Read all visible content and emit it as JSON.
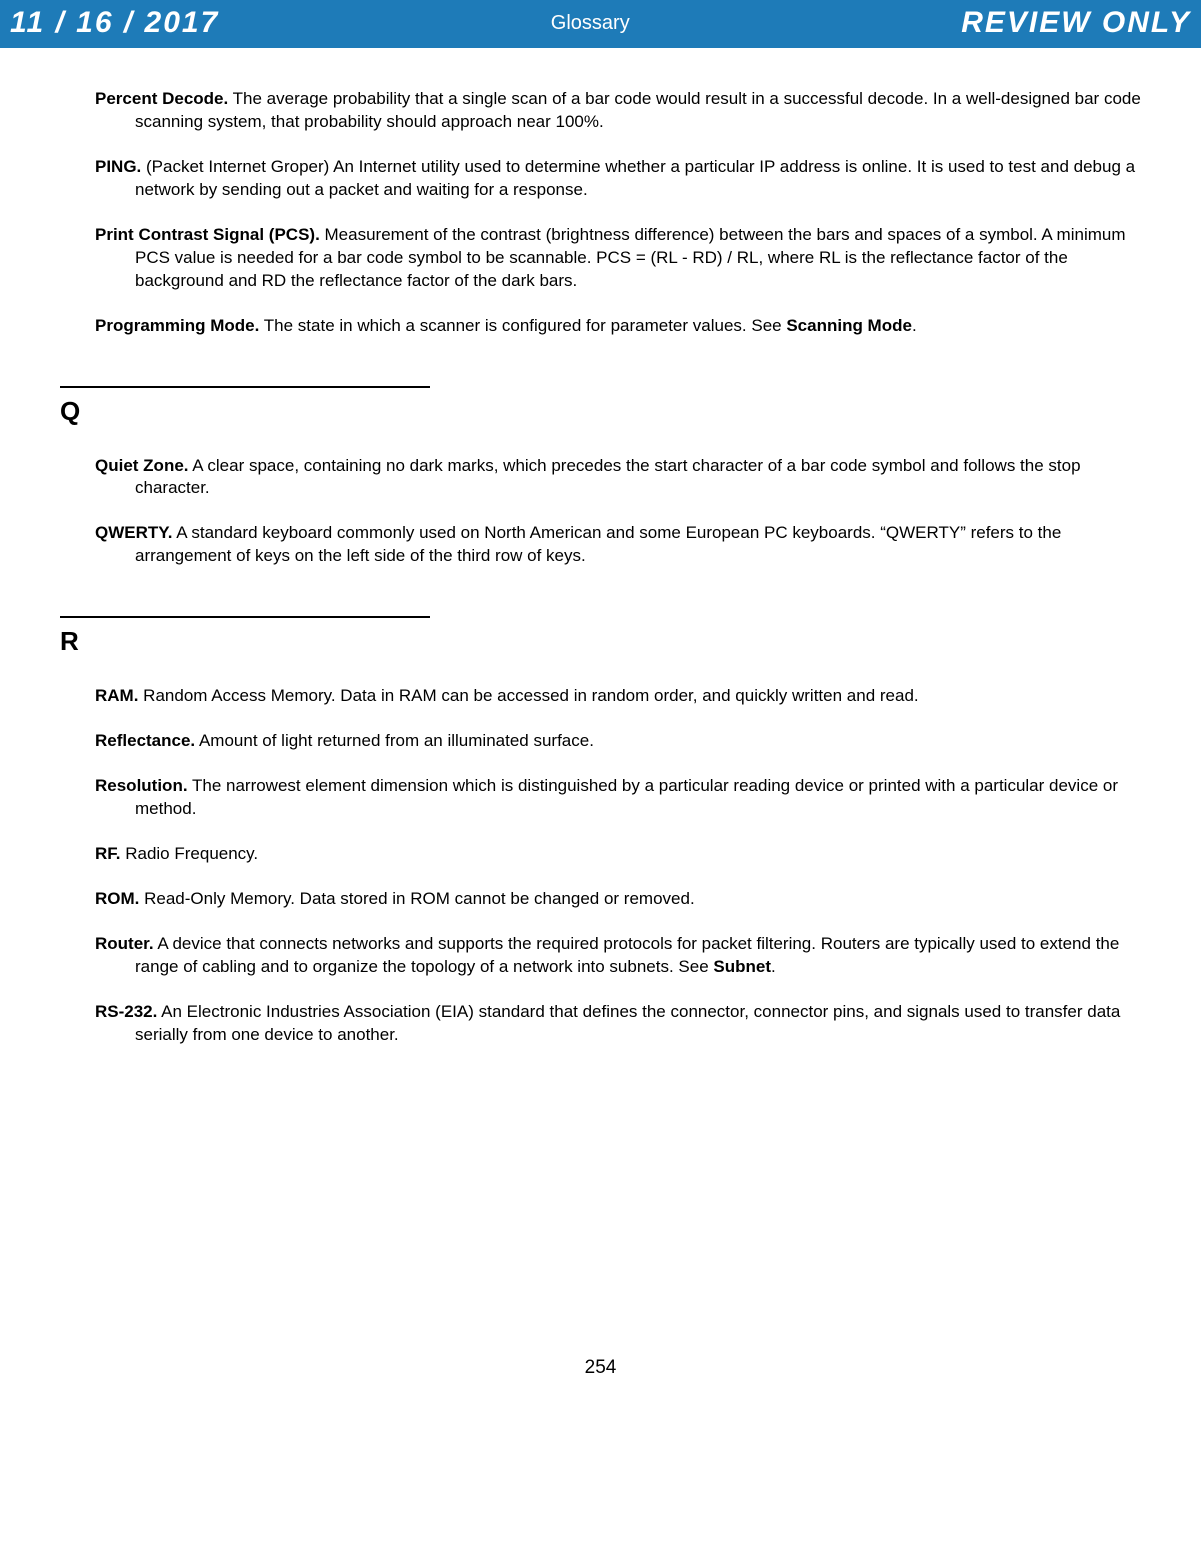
{
  "header": {
    "date": "11 / 16 / 2017",
    "title": "Glossary",
    "stamp": "REVIEW ONLY",
    "bg_color": "#1e7bb8",
    "text_color": "#ffffff"
  },
  "entries_top": [
    {
      "term": "Percent Decode.",
      "def": " The average probability that a single scan of a bar code would result in a successful decode. In a well-designed bar code scanning system, that probability should approach near 100%."
    },
    {
      "term": "PING.",
      "def": " (Packet Internet Groper) An Internet utility used to determine whether a particular IP address is online. It is used to test and debug a network by sending out a packet and waiting for a response."
    },
    {
      "term": "Print Contrast Signal (PCS).",
      "def": " Measurement of the contrast (brightness difference) between the bars and spaces of a symbol. A minimum PCS value is needed for a bar code symbol to be scannable. PCS = (RL - RD) / RL, where RL is the reflectance factor of the background and RD the reflectance factor of the dark bars."
    },
    {
      "term": "Programming Mode.",
      "def": " The state in which a scanner is configured for parameter values. See ",
      "see": "Scanning Mode",
      "tail": "."
    }
  ],
  "section_q": {
    "letter": "Q",
    "entries": [
      {
        "term": "Quiet Zone.",
        "def": " A clear space, containing no dark marks, which precedes the start character of a bar code symbol and follows the stop character."
      },
      {
        "term": "QWERTY.",
        "def": " A standard keyboard commonly used on North American and some European PC keyboards. “QWERTY” refers to the arrangement of keys on the left side of the third row of keys."
      }
    ]
  },
  "section_r": {
    "letter": "R",
    "entries": [
      {
        "term": "RAM.",
        "def": " Random Access Memory. Data in RAM can be accessed in random order, and quickly written and read."
      },
      {
        "term": "Reflectance.",
        "def": " Amount of light returned from an illuminated surface."
      },
      {
        "term": "Resolution.",
        "def": " The narrowest element dimension which is distinguished by a particular reading device or printed with a particular device or method."
      },
      {
        "term": "RF.",
        "def": " Radio Frequency."
      },
      {
        "term": "ROM.",
        "def": " Read-Only Memory. Data stored in ROM cannot be changed or removed."
      },
      {
        "term": "Router.",
        "def": " A device that connects networks and supports the required protocols for packet filtering. Routers are typically used to extend the range of cabling and to organize the topology of a network into subnets. See ",
        "see": "Subnet",
        "tail": "."
      },
      {
        "term": "RS-232.",
        "def": " An Electronic Industries Association (EIA) standard that defines the connector, connector pins, and signals used to transfer data serially from one device to another."
      }
    ]
  },
  "page_number": "254"
}
